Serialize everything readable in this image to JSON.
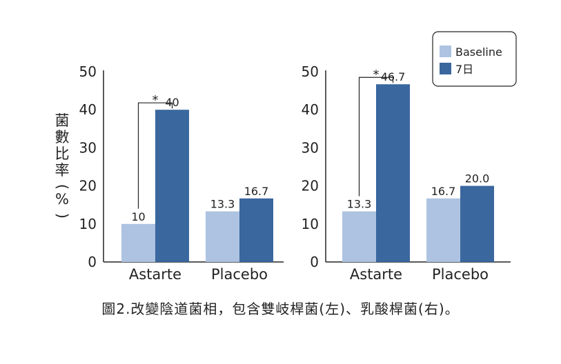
{
  "caption": "圖2.改變陰道菌相，包含雙岐桿菌(左)、乳酸桿菌(右)。",
  "colors": {
    "baseline": "#adc3e1",
    "day7": "#3a679e",
    "axis": "#222222"
  },
  "legend": {
    "entries": [
      "Baseline",
      "7日"
    ],
    "placement": "top-right"
  },
  "chart_data": [
    {
      "type": "bar",
      "ylabel": "菌數比率(%)",
      "ylim": [
        0,
        50
      ],
      "yticks": [
        "0",
        "10",
        "20",
        "30",
        "40",
        "50"
      ],
      "categories": [
        "Astarte",
        "Placebo"
      ],
      "series": [
        {
          "name": "Baseline",
          "values": [
            10,
            13.3
          ],
          "labels": [
            "10",
            "13.3"
          ]
        },
        {
          "name": "7日",
          "values": [
            40,
            16.7
          ],
          "labels": [
            "40",
            "16.7"
          ]
        }
      ],
      "annotation": {
        "text": "*",
        "category": "Astarte"
      }
    },
    {
      "type": "bar",
      "ylabel": "",
      "ylim": [
        0,
        50
      ],
      "yticks": [
        "0",
        "10",
        "20",
        "30",
        "40",
        "50"
      ],
      "categories": [
        "Astarte",
        "Placebo"
      ],
      "series": [
        {
          "name": "Baseline",
          "values": [
            13.3,
            16.7
          ],
          "labels": [
            "13.3",
            "16.7"
          ]
        },
        {
          "name": "7日",
          "values": [
            46.7,
            20.0
          ],
          "labels": [
            "46.7",
            "20.0"
          ]
        }
      ],
      "annotation": {
        "text": "*",
        "category": "Astarte"
      }
    }
  ]
}
